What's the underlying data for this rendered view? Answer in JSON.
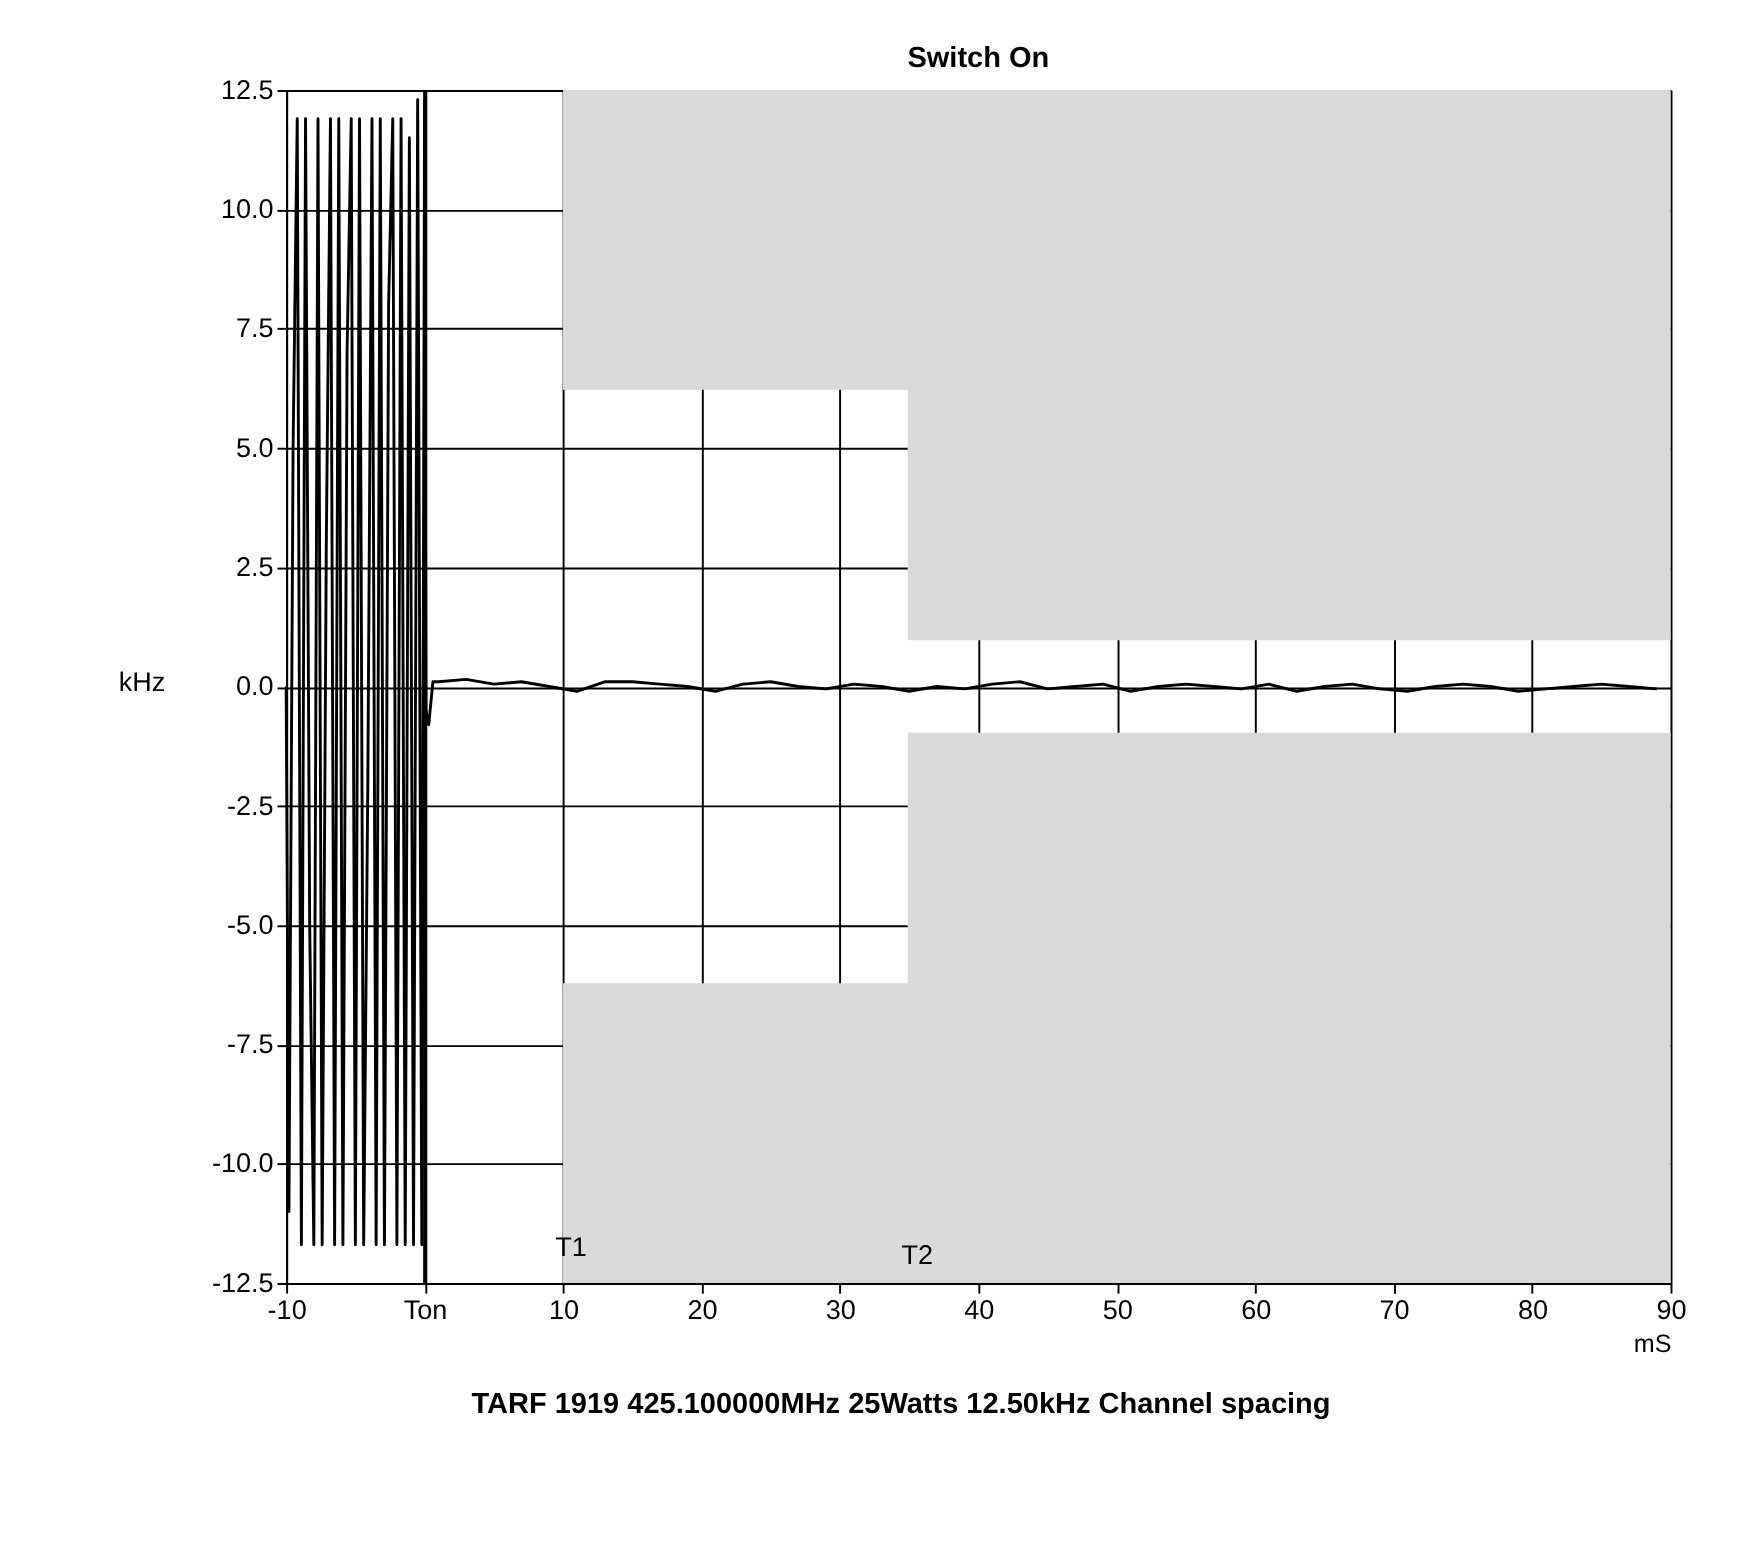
{
  "chart_data": {
    "type": "line",
    "title": "Switch On",
    "xlabel": "mS",
    "ylabel": "kHz",
    "xlim": [
      -10,
      90
    ],
    "ylim": [
      -12.5,
      12.5
    ],
    "xticks": [
      -10,
      {
        "value": 0,
        "label": "Ton"
      },
      10,
      20,
      30,
      40,
      50,
      60,
      70,
      80,
      90
    ],
    "yticks": [
      12.5,
      {
        "value": 10,
        "label": "10.0"
      },
      7.5,
      {
        "value": 5,
        "label": "5.0"
      },
      2.5,
      {
        "value": 0,
        "label": "0.0"
      },
      -2.5,
      {
        "value": -5,
        "label": "-5.0"
      },
      -7.5,
      {
        "value": -10,
        "label": "-10.0"
      },
      -12.5
    ],
    "grid": true,
    "marker": "none",
    "series": [
      {
        "color": "#d9d9d9",
        "x": [
          10,
          35,
          35,
          90
        ],
        "values": [
          6.25,
          6.25,
          1,
          1
        ],
        "lower": [
          6.25,
          6.25,
          1,
          1
        ],
        "upper": [
          12.5,
          12.5,
          12.5,
          12.5
        ]
      },
      {
        "color": "#d9d9d9",
        "x": [
          10,
          35,
          35,
          90
        ],
        "values": [
          -6.25,
          -6.25,
          -1,
          -1
        ],
        "lower": [
          -12.5,
          -12.5,
          -12.5,
          -12.5
        ],
        "upper": [
          -6.25,
          -6.25,
          -1,
          -1
        ]
      },
      {
        "color": "#000000",
        "x": [
          -10,
          -9.8,
          -9.5,
          -9.2,
          -8.9,
          -8.6,
          -8.3,
          -8.0,
          -7.7,
          -7.4,
          -7.1,
          -6.8,
          -6.5,
          -6.2,
          -5.9,
          -5.6,
          -5.3,
          -5.0,
          -4.7,
          -4.4,
          -4.1,
          -3.8,
          -3.5,
          -3.2,
          -2.9,
          -2.6,
          -2.3,
          -2.0,
          -1.7,
          -1.4,
          -1.1,
          -0.8,
          -0.5,
          -0.2,
          0,
          0.1,
          0.3,
          0.6,
          1,
          3,
          5,
          7,
          9,
          11,
          13,
          15,
          17,
          19,
          21,
          23,
          25,
          27,
          29,
          31,
          33,
          35,
          37,
          39,
          41,
          43,
          45,
          47,
          49,
          51,
          53,
          55,
          57,
          59,
          61,
          63,
          65,
          67,
          69,
          71,
          73,
          75,
          77,
          79,
          81,
          83,
          85,
          87,
          89
        ],
        "values": [
          0,
          -11,
          5,
          11.9,
          -11.7,
          11.9,
          -5,
          -11.7,
          11.9,
          -11.7,
          3,
          11.9,
          -11.7,
          11.9,
          -11.7,
          7,
          11.9,
          -11.7,
          11.9,
          -11.7,
          -2,
          11.9,
          -11.7,
          11.9,
          -11.7,
          8,
          11.9,
          -11.7,
          11.9,
          -11.7,
          11.5,
          -11.7,
          12.3,
          -11.7,
          12.3,
          -0.5,
          -0.8,
          0.1,
          0.1,
          0.15,
          0.05,
          0.1,
          0.0,
          -0.1,
          0.1,
          0.1,
          0.05,
          0.0,
          -0.1,
          0.05,
          0.1,
          0.0,
          -0.05,
          0.05,
          0.0,
          -0.1,
          0.0,
          -0.05,
          0.05,
          0.1,
          -0.05,
          0.0,
          0.05,
          -0.1,
          0.0,
          0.05,
          0.0,
          -0.05,
          0.05,
          -0.1,
          0.0,
          0.05,
          -0.05,
          -0.1,
          0.0,
          0.05,
          0.0,
          -0.1,
          -0.05,
          0.0,
          0.05,
          0.0,
          -0.05
        ]
      }
    ],
    "ref_lines": [
      {
        "axis": "x",
        "value": 0,
        "color": "#000000"
      }
    ],
    "annotations": [
      "T1",
      "T2",
      "TARF 1919  425.100000MHz  25Watts   12.50kHz Channel spacing"
    ]
  }
}
